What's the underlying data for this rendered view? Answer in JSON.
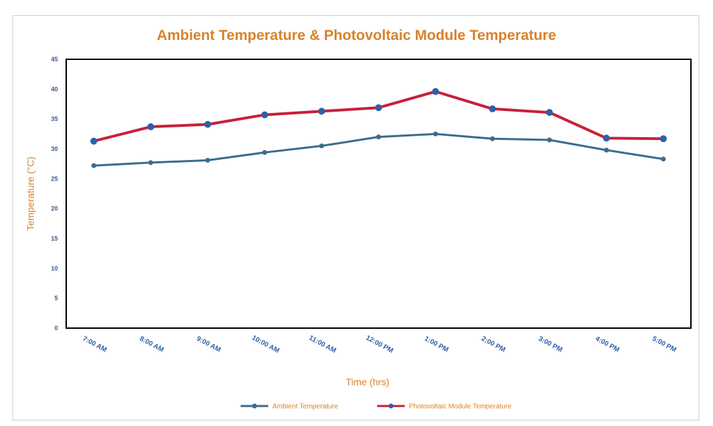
{
  "chart_data": {
    "type": "line",
    "title": "Ambient Temperature & Photovoltaic  Module Temperature",
    "xlabel": "Time (hrs)",
    "ylabel": "Temperature (°C)",
    "categories": [
      "7:00 AM",
      "8:00 AM",
      "9:00 AM",
      "10:00 AM",
      "11:00 AM",
      "12:00 PM",
      "1:00 PM",
      "2:00 PM",
      "3:00 PM",
      "4:00 PM",
      "5:00 PM"
    ],
    "yticks": [
      "0",
      "5",
      "10",
      "15",
      "20",
      "25",
      "30",
      "35",
      "40",
      "45"
    ],
    "ylim": [
      0,
      45
    ],
    "grid": false,
    "legend_position": "bottom",
    "series": [
      {
        "name": "Ambient Temperature",
        "color": "#3d6b8e",
        "values": [
          27.2,
          27.7,
          28.1,
          29.4,
          30.5,
          32,
          32.5,
          31.7,
          31.5,
          29.8,
          28.3
        ]
      },
      {
        "name": "Photovoltaic Module Temperature",
        "color": "#c8203a",
        "values": [
          31.3,
          33.7,
          34.1,
          35.7,
          36.3,
          36.9,
          39.6,
          36.7,
          36.1,
          31.8,
          31.7
        ]
      }
    ],
    "marker_color": "#2f5fa8"
  }
}
